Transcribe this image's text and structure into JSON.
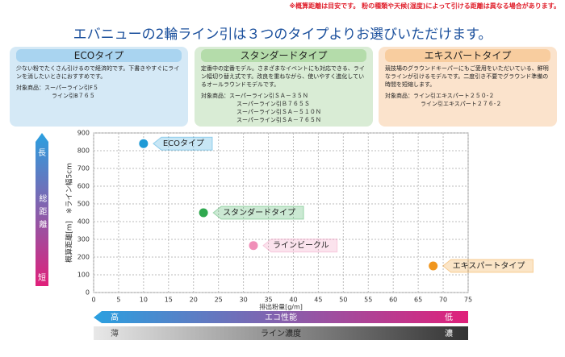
{
  "header": {
    "note": "※概算距離は目安です。 粉の種類や天候(湿度)によって引ける距離は異なる場合があります。",
    "title": "エバニューの2輪ライン引は３つのタイプよりお選びいただけます。"
  },
  "cards": [
    {
      "title": "ECOタイプ",
      "description": "少ない粉でたくさん引けるので経済的です。下書きやすぐにラインを消したいときにおすすめです。",
      "products": [
        "対象商品：スーパーライン引F５",
        "ライン引B７６５"
      ]
    },
    {
      "title": "スタンダードタイプ",
      "description": "定番中の定番モデル。さまざまなイベントにも対応できる、ライン幅切り替え式です。改良を重ねながら、使いやすく進化しているオールラウンドモデルです。",
      "products": [
        "対象商品：スーパーライン引ＳＡ－３５Ｎ",
        "スーパーライン引Ｂ７６５Ｓ",
        "スーパーライン引ＳＡ－５１０Ｎ",
        "スーパーライン引ＳＡ－７６５Ｎ"
      ]
    },
    {
      "title": "エキスパートタイプ",
      "description": "競技場のグラウンドキーパーにもご愛用をいただいている、鮮明なラインが引けるモデルです。二度引き不要でグラウンド準備の時間を短縮します。",
      "products": [
        "対象商品：ライン引エキスパート２５０-２",
        "ライン引エキスパート２７６-２"
      ]
    }
  ],
  "chart_data": {
    "type": "scatter",
    "xlabel": "排出粉量[g/m]",
    "ylabel": "概算距離[m]　※ライン幅5cm",
    "xlim": [
      0,
      75
    ],
    "xticks": [
      0,
      5,
      10,
      15,
      20,
      25,
      30,
      35,
      40,
      45,
      50,
      55,
      60,
      65,
      70,
      75
    ],
    "ylim": [
      0,
      900
    ],
    "yticks": [
      0,
      100,
      200,
      300,
      400,
      500,
      600,
      700,
      800,
      900
    ],
    "grid": true,
    "series": [
      {
        "name": "ECOタイプ",
        "color": "#1e9ad6",
        "x": [
          10
        ],
        "values": [
          840
        ]
      },
      {
        "name": "スタンダードタイプ",
        "color": "#2fa84f",
        "x": [
          22
        ],
        "values": [
          450
        ]
      },
      {
        "name": "ラインビークル",
        "color": "#f08fb8",
        "x": [
          32
        ],
        "values": [
          265
        ]
      },
      {
        "name": "エキスパートタイプ",
        "color": "#f0961e",
        "x": [
          68
        ],
        "values": [
          150
        ]
      }
    ]
  },
  "scales": {
    "distance": {
      "high": "長",
      "label": "総距離",
      "low": "短"
    },
    "eco": {
      "left": "高",
      "label": "エコ性能",
      "right": "低"
    },
    "density": {
      "left": "薄",
      "label": "ライン濃度",
      "right": "濃"
    }
  }
}
